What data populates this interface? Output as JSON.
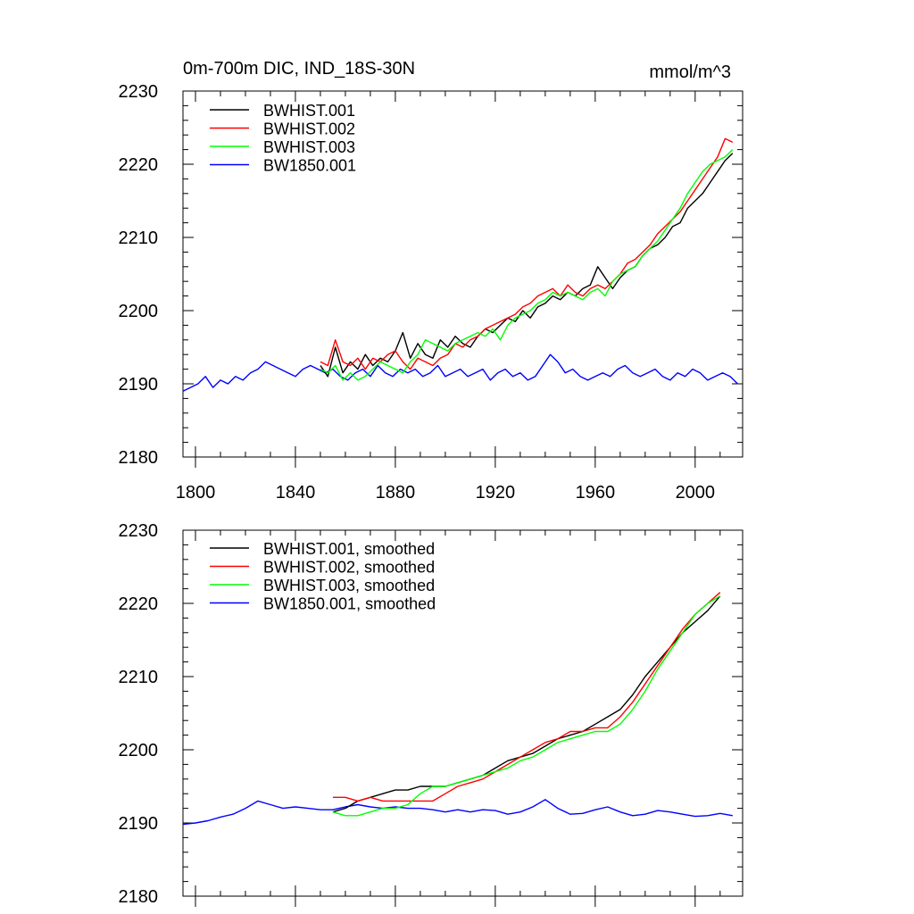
{
  "chart_data": [
    {
      "type": "line",
      "title": "0m-700m DIC, IND_18S-30N",
      "units": "mmol/m^3",
      "xlabel": "",
      "ylabel": "",
      "xlim": [
        1795,
        2019
      ],
      "ylim": [
        2180,
        2230
      ],
      "x_ticks": [
        1800,
        1840,
        1880,
        1920,
        1960,
        2000
      ],
      "y_ticks": [
        2180,
        2190,
        2200,
        2210,
        2220,
        2230
      ],
      "x_tick_labels": [
        "1800",
        "1840",
        "1880",
        "1920",
        "1960",
        "2000"
      ],
      "y_tick_labels": [
        "2180",
        "2190",
        "2200",
        "2210",
        "2220",
        "2230"
      ],
      "legend_position": "top-left",
      "series": [
        {
          "name": "BWHIST.001",
          "color": "#000000",
          "x": [
            1850,
            1853,
            1856,
            1859,
            1862,
            1865,
            1868,
            1871,
            1874,
            1877,
            1880,
            1883,
            1886,
            1889,
            1892,
            1895,
            1898,
            1901,
            1904,
            1907,
            1910,
            1913,
            1916,
            1919,
            1922,
            1925,
            1928,
            1931,
            1934,
            1937,
            1940,
            1943,
            1946,
            1949,
            1952,
            1955,
            1958,
            1961,
            1964,
            1967,
            1970,
            1973,
            1976,
            1979,
            1982,
            1985,
            1988,
            1991,
            1994,
            1997,
            2000,
            2003,
            2006,
            2009,
            2012,
            2015
          ],
          "y": [
            2192.5,
            2191.0,
            2195.0,
            2191.5,
            2193.0,
            2192.0,
            2194.0,
            2192.5,
            2193.5,
            2193.0,
            2194.5,
            2197.0,
            2193.5,
            2195.5,
            2194.0,
            2193.5,
            2196.0,
            2195.0,
            2196.5,
            2195.5,
            2195.0,
            2196.5,
            2197.5,
            2197.0,
            2198.0,
            2199.0,
            2198.5,
            2200.0,
            2199.0,
            2200.5,
            2201.0,
            2202.0,
            2201.5,
            2202.5,
            2202.0,
            2203.0,
            2203.5,
            2206.0,
            2204.5,
            2203.0,
            2204.5,
            2205.5,
            2206.0,
            2207.5,
            2208.5,
            2209.0,
            2210.0,
            2211.5,
            2212.0,
            2214.0,
            2215.0,
            2216.0,
            2217.5,
            2219.0,
            2220.5,
            2221.5
          ]
        },
        {
          "name": "BWHIST.002",
          "color": "#ff0000",
          "x": [
            1850,
            1853,
            1856,
            1859,
            1862,
            1865,
            1868,
            1871,
            1874,
            1877,
            1880,
            1883,
            1886,
            1889,
            1892,
            1895,
            1898,
            1901,
            1904,
            1907,
            1910,
            1913,
            1916,
            1919,
            1922,
            1925,
            1928,
            1931,
            1934,
            1937,
            1940,
            1943,
            1946,
            1949,
            1952,
            1955,
            1958,
            1961,
            1964,
            1967,
            1970,
            1973,
            1976,
            1979,
            1982,
            1985,
            1988,
            1991,
            1994,
            1997,
            2000,
            2003,
            2006,
            2009,
            2012,
            2015
          ],
          "y": [
            2193.0,
            2192.5,
            2196.0,
            2193.0,
            2192.5,
            2193.5,
            2192.0,
            2193.5,
            2193.0,
            2194.0,
            2194.5,
            2193.0,
            2192.0,
            2193.5,
            2193.0,
            2192.5,
            2193.5,
            2194.0,
            2195.5,
            2195.0,
            2196.0,
            2196.5,
            2197.5,
            2198.0,
            2198.5,
            2199.0,
            2199.5,
            2200.5,
            2201.0,
            2202.0,
            2202.5,
            2203.0,
            2202.0,
            2203.5,
            2202.5,
            2202.0,
            2203.0,
            2203.5,
            2203.0,
            2204.0,
            2205.0,
            2206.5,
            2207.0,
            2208.0,
            2209.0,
            2210.5,
            2211.5,
            2212.5,
            2213.5,
            2215.0,
            2216.5,
            2218.0,
            2219.5,
            2221.0,
            2223.5,
            2223.0
          ]
        },
        {
          "name": "BWHIST.003",
          "color": "#00ff00",
          "x": [
            1850,
            1853,
            1856,
            1859,
            1862,
            1865,
            1868,
            1871,
            1874,
            1877,
            1880,
            1883,
            1886,
            1889,
            1892,
            1895,
            1898,
            1901,
            1904,
            1907,
            1910,
            1913,
            1916,
            1919,
            1922,
            1925,
            1928,
            1931,
            1934,
            1937,
            1940,
            1943,
            1946,
            1949,
            1952,
            1955,
            1958,
            1961,
            1964,
            1967,
            1970,
            1973,
            1976,
            1979,
            1982,
            1985,
            1988,
            1991,
            1994,
            1997,
            2000,
            2003,
            2006,
            2009,
            2012,
            2015
          ],
          "y": [
            2192.0,
            2191.5,
            2192.5,
            2190.5,
            2191.5,
            2190.5,
            2191.0,
            2192.0,
            2193.0,
            2192.5,
            2192.0,
            2191.5,
            2193.0,
            2194.0,
            2196.0,
            2195.5,
            2195.0,
            2194.5,
            2195.5,
            2196.0,
            2196.5,
            2197.0,
            2196.5,
            2197.5,
            2196.0,
            2198.0,
            2199.0,
            2199.5,
            2200.0,
            2201.0,
            2201.5,
            2202.5,
            2202.0,
            2202.5,
            2202.0,
            2201.5,
            2202.5,
            2203.0,
            2202.0,
            2204.0,
            2205.0,
            2205.5,
            2206.0,
            2207.5,
            2208.5,
            2209.5,
            2211.0,
            2212.5,
            2214.0,
            2216.0,
            2217.5,
            2219.0,
            2220.0,
            2220.5,
            2221.0,
            2222.0
          ]
        },
        {
          "name": "BW1850.001",
          "color": "#0000ff",
          "x": [
            1795,
            1798,
            1801,
            1804,
            1807,
            1810,
            1813,
            1816,
            1819,
            1822,
            1825,
            1828,
            1831,
            1834,
            1837,
            1840,
            1843,
            1846,
            1849,
            1852,
            1855,
            1858,
            1861,
            1864,
            1867,
            1870,
            1873,
            1876,
            1879,
            1882,
            1885,
            1888,
            1891,
            1894,
            1897,
            1900,
            1903,
            1906,
            1909,
            1912,
            1915,
            1918,
            1921,
            1924,
            1927,
            1930,
            1933,
            1936,
            1939,
            1942,
            1945,
            1948,
            1951,
            1954,
            1957,
            1960,
            1963,
            1966,
            1969,
            1972,
            1975,
            1978,
            1981,
            1984,
            1987,
            1990,
            1993,
            1996,
            1999,
            2002,
            2005,
            2008,
            2011,
            2014,
            2017
          ],
          "y": [
            2189.0,
            2189.5,
            2190.0,
            2191.0,
            2189.5,
            2190.5,
            2190.0,
            2191.0,
            2190.5,
            2191.5,
            2192.0,
            2193.0,
            2192.5,
            2192.0,
            2191.5,
            2191.0,
            2192.0,
            2192.5,
            2192.0,
            2191.5,
            2192.0,
            2191.0,
            2190.5,
            2191.5,
            2192.0,
            2191.0,
            2192.5,
            2191.5,
            2191.0,
            2192.0,
            2191.5,
            2192.0,
            2191.0,
            2191.5,
            2192.5,
            2191.0,
            2191.5,
            2192.0,
            2191.0,
            2191.5,
            2192.0,
            2190.5,
            2191.5,
            2192.0,
            2191.0,
            2191.5,
            2190.5,
            2191.0,
            2192.5,
            2194.0,
            2193.0,
            2191.5,
            2192.0,
            2191.0,
            2190.5,
            2191.0,
            2191.5,
            2191.0,
            2192.0,
            2192.5,
            2191.5,
            2191.0,
            2191.5,
            2192.0,
            2191.0,
            2190.5,
            2191.5,
            2191.0,
            2192.0,
            2191.5,
            2190.5,
            2191.0,
            2191.5,
            2191.0,
            2190.0
          ]
        }
      ]
    },
    {
      "type": "line",
      "title": "",
      "units": "",
      "xlabel": "",
      "ylabel": "",
      "xlim": [
        1795,
        2019
      ],
      "ylim": [
        2180,
        2230
      ],
      "x_ticks": [
        1800,
        1840,
        1880,
        1920,
        1960,
        2000
      ],
      "y_ticks": [
        2180,
        2190,
        2200,
        2210,
        2220,
        2230
      ],
      "x_tick_labels": [],
      "y_tick_labels": [
        "2180",
        "2190",
        "2200",
        "2210",
        "2220",
        "2230"
      ],
      "legend_position": "top-left",
      "series": [
        {
          "name": "BWHIST.001, smoothed",
          "color": "#000000",
          "x": [
            1855,
            1860,
            1865,
            1870,
            1875,
            1880,
            1885,
            1890,
            1895,
            1900,
            1905,
            1910,
            1915,
            1920,
            1925,
            1930,
            1935,
            1940,
            1945,
            1950,
            1955,
            1960,
            1965,
            1970,
            1975,
            1980,
            1985,
            1990,
            1995,
            2000,
            2005,
            2010
          ],
          "y": [
            2191.5,
            2192.0,
            2193.0,
            2193.5,
            2194.0,
            2194.5,
            2194.5,
            2195.0,
            2195.0,
            2195.0,
            2195.5,
            2196.0,
            2196.5,
            2197.5,
            2198.5,
            2199.0,
            2199.5,
            2200.5,
            2201.5,
            2202.0,
            2202.5,
            2203.5,
            2204.5,
            2205.5,
            2207.5,
            2210.0,
            2212.0,
            2214.0,
            2216.0,
            2217.5,
            2219.0,
            2221.0
          ]
        },
        {
          "name": "BWHIST.002, smoothed",
          "color": "#ff0000",
          "x": [
            1855,
            1860,
            1865,
            1870,
            1875,
            1880,
            1885,
            1890,
            1895,
            1900,
            1905,
            1910,
            1915,
            1920,
            1925,
            1930,
            1935,
            1940,
            1945,
            1950,
            1955,
            1960,
            1965,
            1970,
            1975,
            1980,
            1985,
            1990,
            1995,
            2000,
            2005,
            2010
          ],
          "y": [
            2193.5,
            2193.5,
            2193.0,
            2193.5,
            2193.0,
            2193.0,
            2193.0,
            2193.0,
            2193.0,
            2194.0,
            2195.0,
            2195.5,
            2196.0,
            2197.0,
            2198.0,
            2199.0,
            2200.0,
            2201.0,
            2201.5,
            2202.5,
            2202.5,
            2203.0,
            2203.0,
            2204.5,
            2206.5,
            2209.0,
            2211.5,
            2214.0,
            2216.5,
            2218.5,
            2220.0,
            2221.5
          ]
        },
        {
          "name": "BWHIST.003, smoothed",
          "color": "#00ff00",
          "x": [
            1855,
            1860,
            1865,
            1870,
            1875,
            1880,
            1885,
            1890,
            1895,
            1900,
            1905,
            1910,
            1915,
            1920,
            1925,
            1930,
            1935,
            1940,
            1945,
            1950,
            1955,
            1960,
            1965,
            1970,
            1975,
            1980,
            1985,
            1990,
            1995,
            2000,
            2005,
            2010
          ],
          "y": [
            2191.5,
            2191.0,
            2191.0,
            2191.5,
            2192.0,
            2192.0,
            2192.5,
            2194.0,
            2195.0,
            2195.0,
            2195.5,
            2196.0,
            2196.5,
            2197.0,
            2197.5,
            2198.5,
            2199.0,
            2200.0,
            2201.0,
            2201.5,
            2202.0,
            2202.5,
            2202.5,
            2203.5,
            2205.5,
            2208.0,
            2211.0,
            2213.5,
            2216.0,
            2218.5,
            2220.0,
            2221.0
          ]
        },
        {
          "name": "BW1850.001, smoothed",
          "color": "#0000ff",
          "x": [
            1795,
            1800,
            1805,
            1810,
            1815,
            1820,
            1825,
            1830,
            1835,
            1840,
            1845,
            1850,
            1855,
            1860,
            1865,
            1870,
            1875,
            1880,
            1885,
            1890,
            1895,
            1900,
            1905,
            1910,
            1915,
            1920,
            1925,
            1930,
            1935,
            1940,
            1945,
            1950,
            1955,
            1960,
            1965,
            1970,
            1975,
            1980,
            1985,
            1990,
            1995,
            2000,
            2005,
            2010,
            2015
          ],
          "y": [
            2189.8,
            2190.0,
            2190.3,
            2190.8,
            2191.2,
            2192.0,
            2193.0,
            2192.5,
            2192.0,
            2192.2,
            2192.0,
            2191.8,
            2191.8,
            2192.2,
            2192.5,
            2192.2,
            2192.0,
            2192.2,
            2192.0,
            2192.0,
            2191.8,
            2191.5,
            2191.8,
            2191.5,
            2191.8,
            2191.7,
            2191.2,
            2191.5,
            2192.2,
            2193.2,
            2192.0,
            2191.2,
            2191.3,
            2191.8,
            2192.2,
            2191.5,
            2191.0,
            2191.2,
            2191.7,
            2191.5,
            2191.2,
            2190.9,
            2191.0,
            2191.3,
            2191.0
          ]
        }
      ]
    }
  ]
}
